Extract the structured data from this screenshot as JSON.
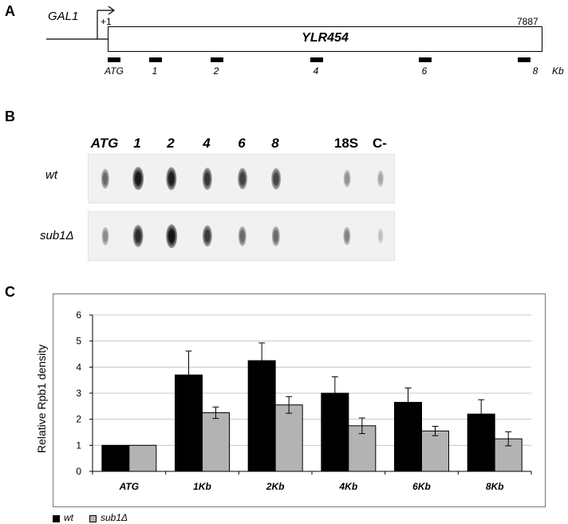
{
  "panels": {
    "a": "A",
    "b": "B",
    "c": "C"
  },
  "panel_a": {
    "promoter": "GAL1",
    "tss": "+1",
    "gene_end": "7887",
    "gene_name": "YLR454",
    "unit": "Kb",
    "probes": [
      "ATG",
      "1",
      "2",
      "4",
      "6",
      "8"
    ]
  },
  "panel_b": {
    "lanes": [
      "ATG",
      "1",
      "2",
      "4",
      "6",
      "8",
      "18S",
      "C-"
    ],
    "rows": [
      "wt",
      "sub1Δ"
    ],
    "signal": {
      "wt": [
        0.55,
        0.95,
        0.92,
        0.8,
        0.75,
        0.72,
        0.35,
        0.25
      ],
      "sub1Δ": [
        0.38,
        0.85,
        0.97,
        0.78,
        0.55,
        0.55,
        0.42,
        0.12
      ]
    }
  },
  "chart_data": {
    "type": "bar",
    "categories": [
      "ATG",
      "1Kb",
      "2Kb",
      "4Kb",
      "6Kb",
      "8Kb"
    ],
    "series": [
      {
        "name": "wt",
        "values": [
          1.0,
          3.7,
          4.25,
          3.0,
          2.65,
          2.2
        ],
        "errors": [
          0,
          0.92,
          0.68,
          0.63,
          0.55,
          0.55
        ],
        "color": "#000000"
      },
      {
        "name": "sub1Δ",
        "values": [
          1.0,
          2.25,
          2.55,
          1.75,
          1.55,
          1.25
        ],
        "errors": [
          0,
          0.22,
          0.32,
          0.3,
          0.18,
          0.27
        ],
        "color": "#b3b3b3"
      }
    ],
    "ylabel": "Relative Rpb1 density",
    "xlabel": "",
    "ylim": [
      0,
      6
    ],
    "yticks": [
      "0",
      "1",
      "2",
      "3",
      "4",
      "5",
      "6"
    ],
    "grid": true,
    "legend": "bottom-left"
  }
}
